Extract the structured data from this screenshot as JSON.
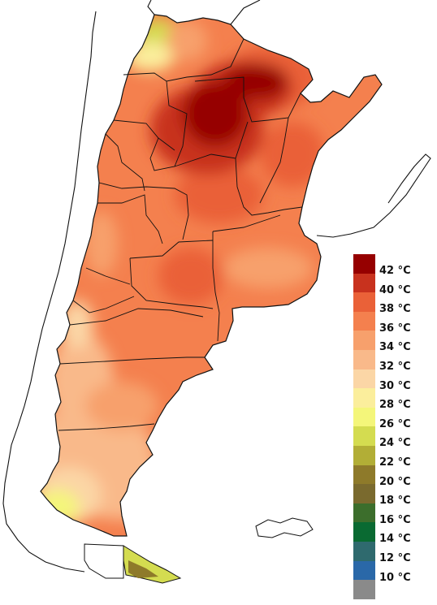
{
  "legend": {
    "items": [
      {
        "label": "42 °C",
        "color": "#960000"
      },
      {
        "label": "40 °C",
        "color": "#c8321e"
      },
      {
        "label": "38 °C",
        "color": "#ea6138"
      },
      {
        "label": "36 °C",
        "color": "#f4804e"
      },
      {
        "label": "34 °C",
        "color": "#f7a06c"
      },
      {
        "label": "32 °C",
        "color": "#f9b98a"
      },
      {
        "label": "30 °C",
        "color": "#fbd6a6"
      },
      {
        "label": "28 °C",
        "color": "#fbee9c"
      },
      {
        "label": "26 °C",
        "color": "#f4f67a"
      },
      {
        "label": "24 °C",
        "color": "#d4dc50"
      },
      {
        "label": "22 °C",
        "color": "#b2ae36"
      },
      {
        "label": "20 °C",
        "color": "#8e7a2a"
      },
      {
        "label": "18 °C",
        "color": "#7a6a2e"
      },
      {
        "label": "16 °C",
        "color": "#3c6e2c"
      },
      {
        "label": "14 °C",
        "color": "#0a6a32"
      },
      {
        "label": "12 °C",
        "color": "#2f6a6e"
      },
      {
        "label": "10 °C",
        "color": "#2a68a8"
      },
      {
        "label": "",
        "color": "#8a8a8a"
      }
    ]
  },
  "colors": {
    "ocean": "#ffffff",
    "borders": "#111111",
    "neighbors_fill": "#ffffff"
  }
}
